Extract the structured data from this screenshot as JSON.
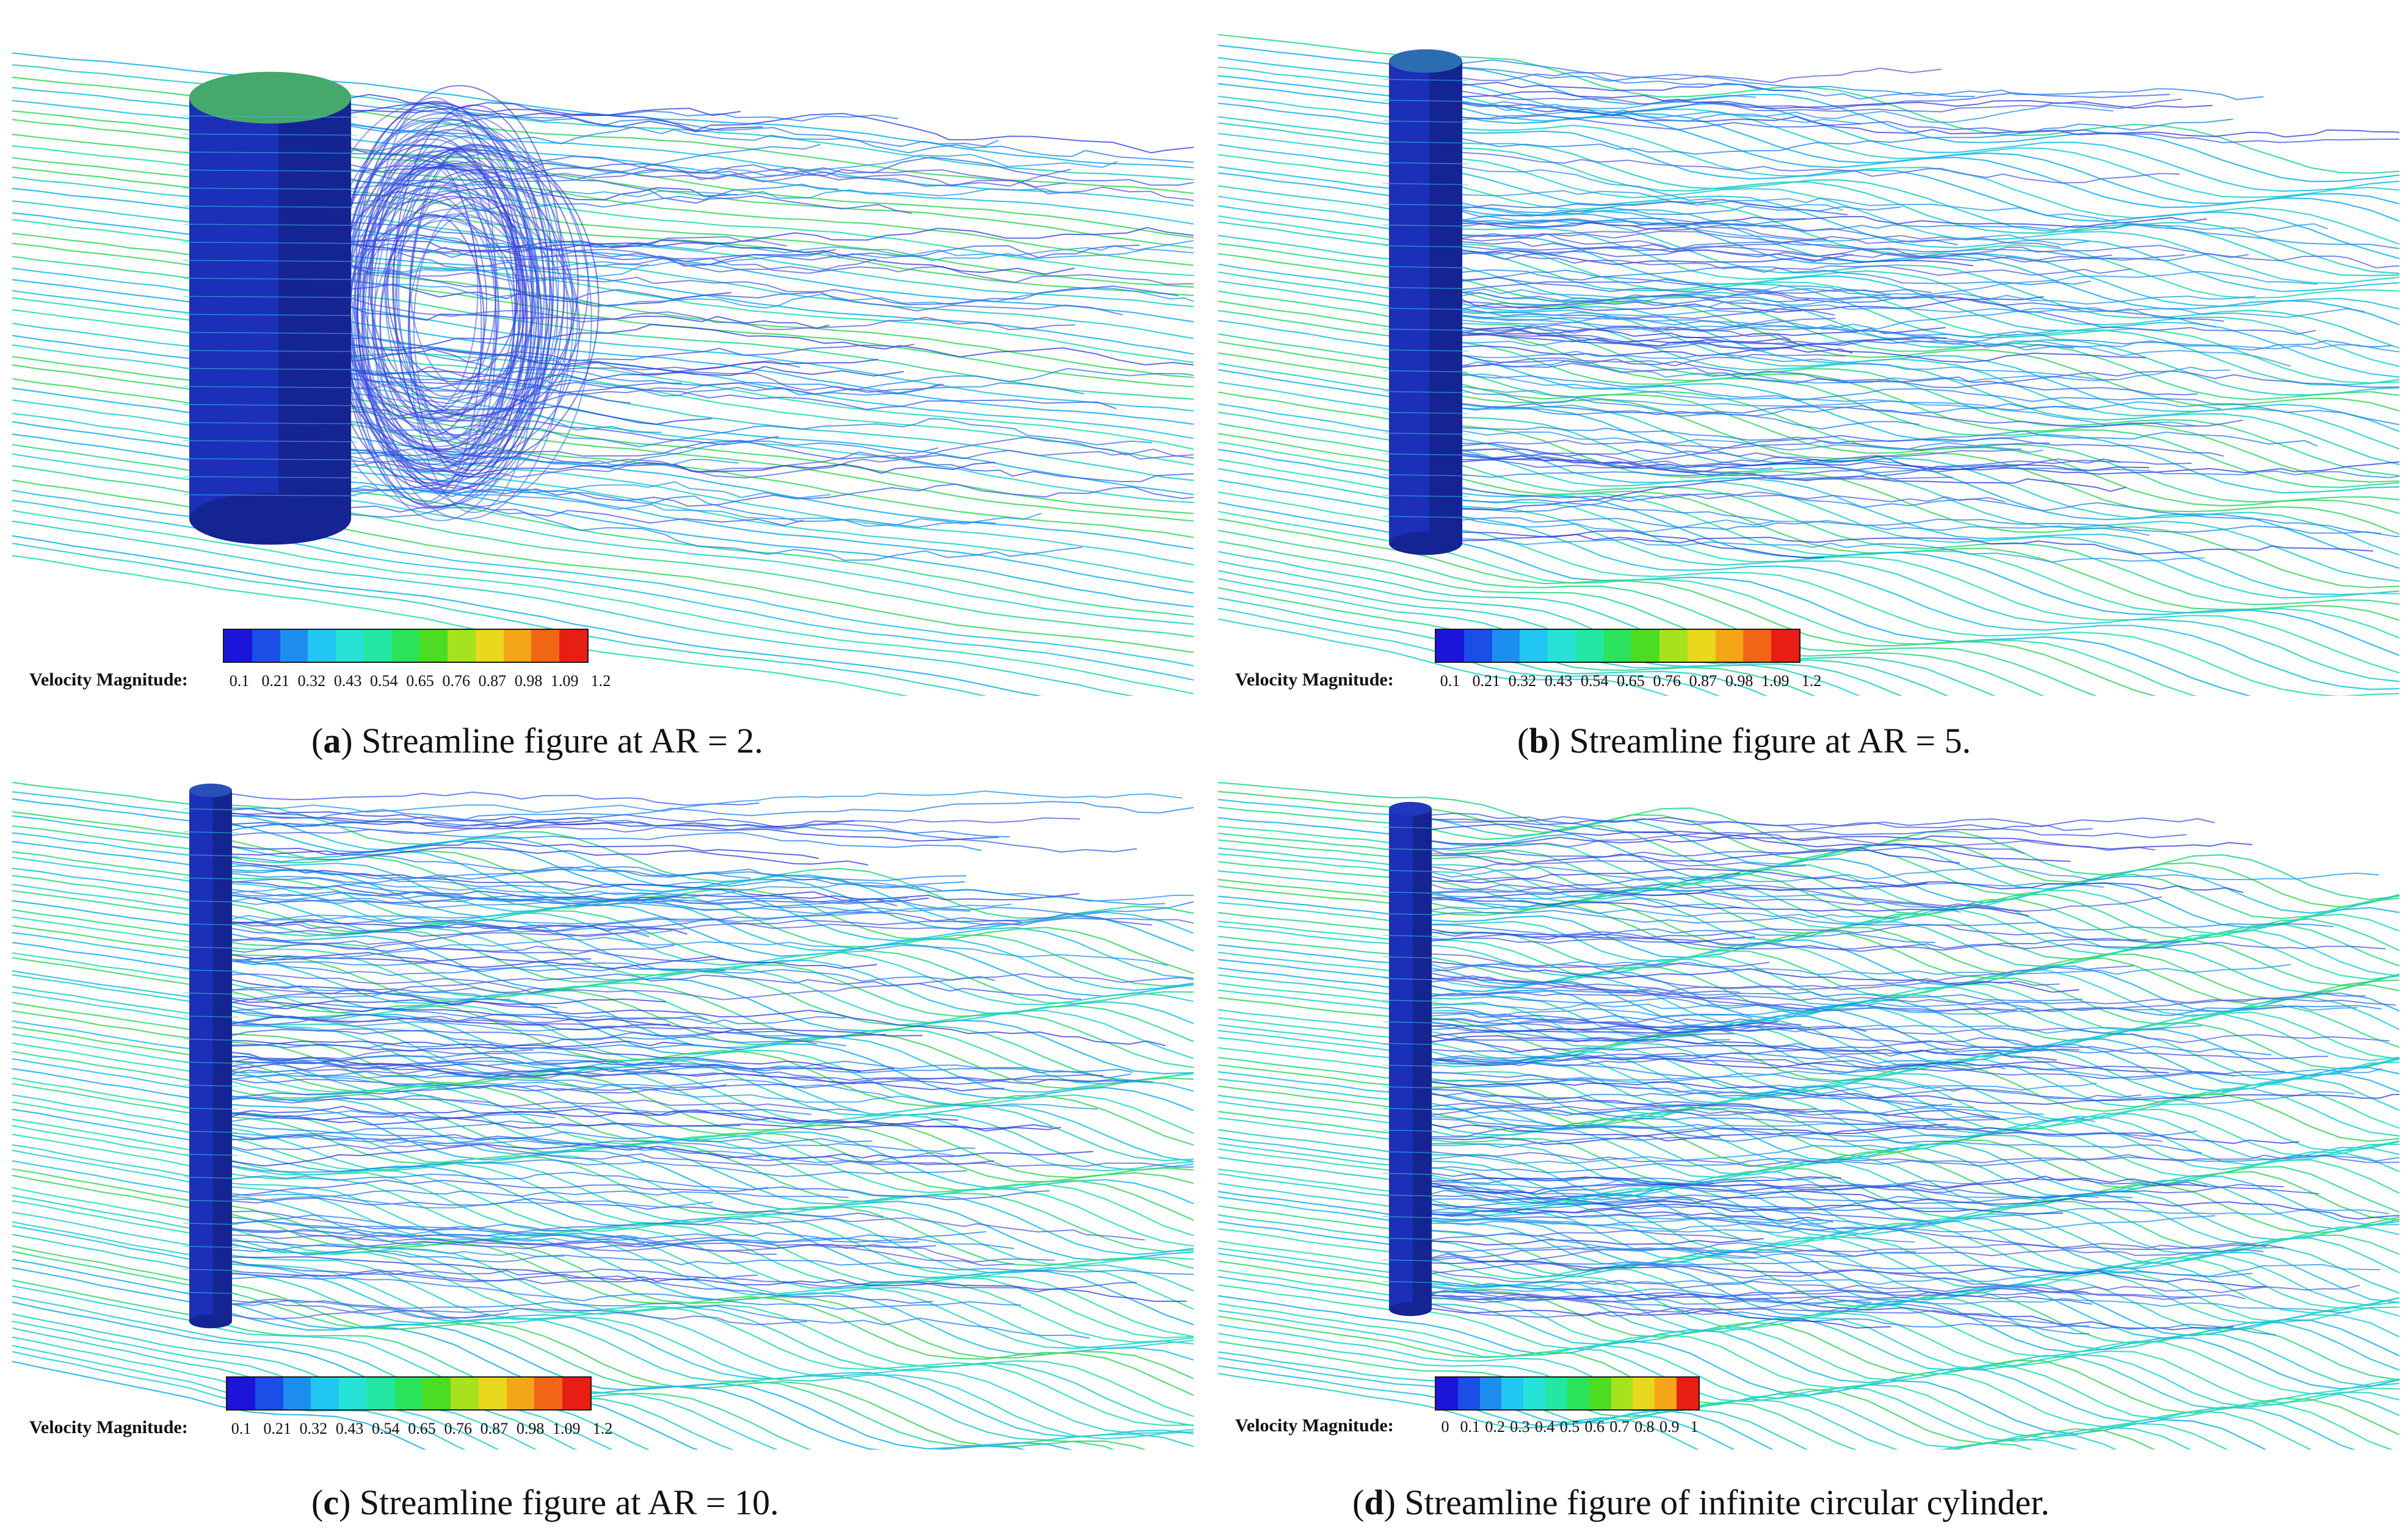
{
  "panels": [
    {
      "letter": "a",
      "caption": ") Streamline figure at AR = 2.",
      "legend_title": "Velocity Magnitude:",
      "ticks": [
        "0.1",
        "0.21",
        "0.32",
        "0.43",
        "0.54",
        "0.65",
        "0.76",
        "0.87",
        "0.98",
        "1.09",
        "1.2"
      ],
      "colorbar": [
        "#1c14d8",
        "#1a4ee6",
        "#1d8ef0",
        "#22c6f2",
        "#26e2d6",
        "#22e6a2",
        "#2ae35a",
        "#4cdc22",
        "#a6e21e",
        "#e8d81e",
        "#f4a618",
        "#f06616",
        "#e81e14"
      ]
    },
    {
      "letter": "b",
      "caption": ") Streamline figure at AR = 5.",
      "legend_title": "Velocity Magnitude:",
      "ticks": [
        "0.1",
        "0.21",
        "0.32",
        "0.43",
        "0.54",
        "0.65",
        "0.76",
        "0.87",
        "0.98",
        "1.09",
        "1.2"
      ],
      "colorbar": [
        "#1c14d8",
        "#1a4ee6",
        "#1d8ef0",
        "#22c6f2",
        "#26e2d6",
        "#22e6a2",
        "#2ae35a",
        "#4cdc22",
        "#a6e21e",
        "#e8d81e",
        "#f4a618",
        "#f06616",
        "#e81e14"
      ]
    },
    {
      "letter": "c",
      "caption": ") Streamline figure at AR = 10.",
      "legend_title": "Velocity Magnitude:",
      "ticks": [
        "0.1",
        "0.21",
        "0.32",
        "0.43",
        "0.54",
        "0.65",
        "0.76",
        "0.87",
        "0.98",
        "1.09",
        "1.2"
      ],
      "colorbar": [
        "#1c14d8",
        "#1a4ee6",
        "#1d8ef0",
        "#22c6f2",
        "#26e2d6",
        "#22e6a2",
        "#2ae35a",
        "#4cdc22",
        "#a6e21e",
        "#e8d81e",
        "#f4a618",
        "#f06616",
        "#e81e14"
      ]
    },
    {
      "letter": "d",
      "caption": ") Streamline figure of infinite circular cylinder.",
      "legend_title": "Velocity Magnitude:",
      "ticks": [
        "0",
        "0.1",
        "0.2",
        "0.3",
        "0.4",
        "0.5",
        "0.6",
        "0.7",
        "0.8",
        "0.9",
        "1"
      ],
      "colorbar": [
        "#1c14d8",
        "#1a4ee6",
        "#1d8ef0",
        "#22c6f2",
        "#26e2d6",
        "#22e6a2",
        "#2ae35a",
        "#4cdc22",
        "#a6e21e",
        "#e8d81e",
        "#f4a618",
        "#e81e14"
      ]
    }
  ]
}
